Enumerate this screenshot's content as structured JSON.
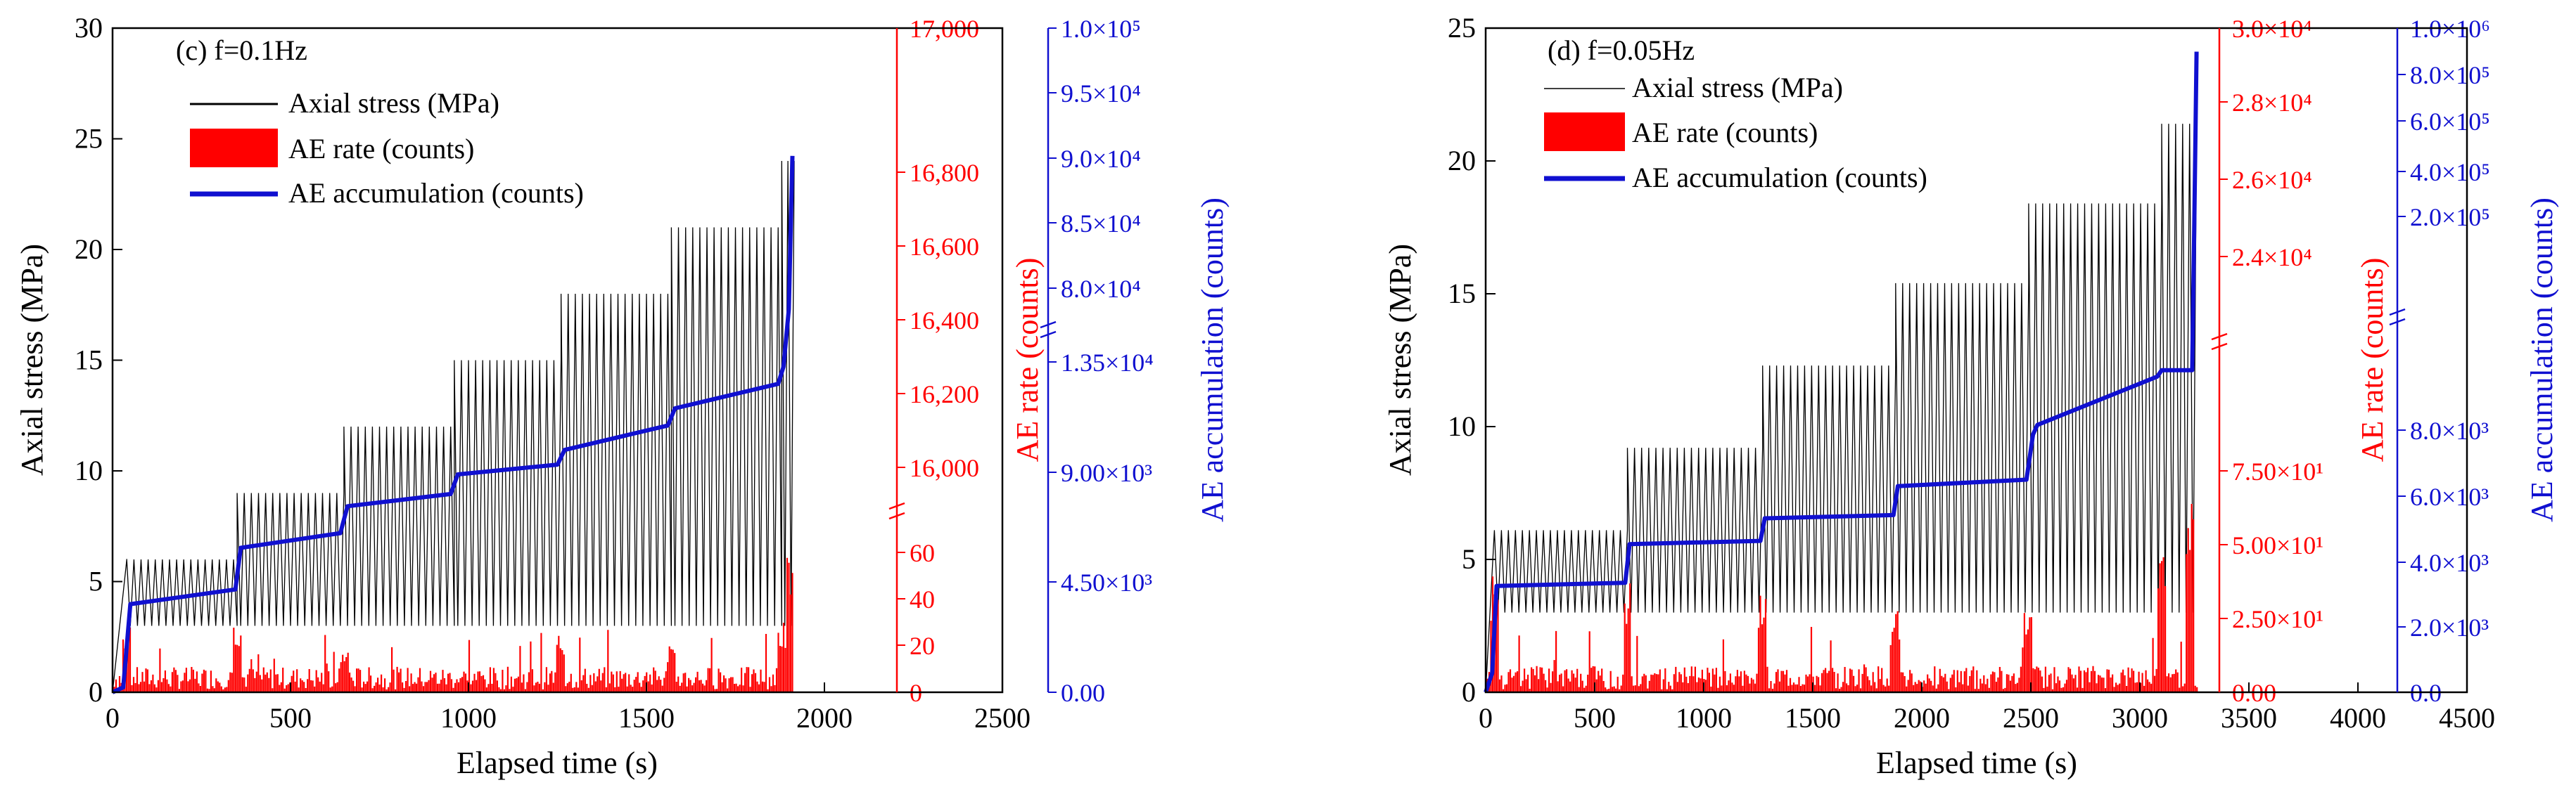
{
  "colors": {
    "stress": "#000000",
    "rate": "#ff0000",
    "acc": "#1010d0",
    "axis": "#000000"
  },
  "chart_data": [
    {
      "type": "line",
      "panel_label": "(c) f=0.1Hz",
      "xlabel": "Elapsed time (s)",
      "xlim": [
        0,
        2500
      ],
      "xticks": [
        0,
        500,
        1000,
        1500,
        2000,
        2500
      ],
      "xticklabels": [
        "0",
        "500",
        "1000",
        "1500",
        "2000",
        "2500"
      ],
      "left_axis": {
        "label": "Axial stress (MPa)",
        "ylim": [
          0,
          30
        ],
        "ticks": [
          0,
          5,
          10,
          15,
          20,
          25,
          30
        ],
        "ticklabels": [
          "0",
          "5",
          "10",
          "15",
          "20",
          "25",
          "30"
        ]
      },
      "rate_axis": {
        "label": "AE rate (counts)",
        "lower_ticks": [
          "0",
          "20",
          "40",
          "60"
        ],
        "upper_ticks": [
          "16,000",
          "16,200",
          "16,400",
          "16,600",
          "16,800",
          "17,000"
        ]
      },
      "acc_axis": {
        "label": "AE accumulation (counts)",
        "lower_ticks": [
          "0.00",
          "4.50×10³",
          "9.00×10³",
          "1.35×10⁴"
        ],
        "upper_ticks": [
          "8.0×10⁴",
          "8.5×10⁴",
          "9.0×10⁴",
          "9.5×10⁴",
          "1.0×10⁵"
        ]
      },
      "legend": [
        "Axial stress (MPa)",
        "AE rate (counts)",
        "AE accumulation (counts)"
      ],
      "stress_steps": [
        {
          "t0": 40,
          "t1": 350,
          "min": 3,
          "max": 6
        },
        {
          "t0": 350,
          "t1": 650,
          "min": 3,
          "max": 9
        },
        {
          "t0": 650,
          "t1": 960,
          "min": 3,
          "max": 12
        },
        {
          "t0": 960,
          "t1": 1260,
          "min": 3,
          "max": 15
        },
        {
          "t0": 1260,
          "t1": 1570,
          "min": 3,
          "max": 18
        },
        {
          "t0": 1570,
          "t1": 1880,
          "min": 3,
          "max": 21
        },
        {
          "t0": 1880,
          "t1": 1915,
          "min": 3,
          "max": 24
        }
      ],
      "ae_rate_series": {
        "t_end": 1915,
        "base": 6,
        "spikes": [
          {
            "t": 40,
            "v": 28
          },
          {
            "t": 350,
            "v": 32
          },
          {
            "t": 650,
            "v": 18
          },
          {
            "t": 1260,
            "v": 24
          },
          {
            "t": 1570,
            "v": 20
          },
          {
            "t": 1880,
            "v": 30
          },
          {
            "t": 1905,
            "v": 60
          }
        ]
      },
      "ae_accumulation_series": [
        [
          0,
          0
        ],
        [
          30,
          200
        ],
        [
          50,
          3600
        ],
        [
          345,
          4200
        ],
        [
          360,
          5900
        ],
        [
          640,
          6500
        ],
        [
          660,
          7600
        ],
        [
          950,
          8100
        ],
        [
          970,
          8900
        ],
        [
          1250,
          9300
        ],
        [
          1270,
          9900
        ],
        [
          1560,
          10900
        ],
        [
          1580,
          11600
        ],
        [
          1870,
          12600
        ],
        [
          1885,
          13300
        ],
        [
          1900,
          78000
        ],
        [
          1910,
          90000
        ]
      ]
    },
    {
      "type": "line",
      "panel_label": "(d) f=0.05Hz",
      "xlabel": "Elapsed time (s)",
      "xlim": [
        0,
        4500
      ],
      "xticks": [
        0,
        500,
        1000,
        1500,
        2000,
        2500,
        3000,
        3500,
        4000,
        4500
      ],
      "xticklabels": [
        "0",
        "500",
        "1000",
        "1500",
        "2000",
        "2500",
        "3000",
        "3500",
        "4000",
        "4500"
      ],
      "left_axis": {
        "label": "Axial stress (MPa)",
        "ylim": [
          0,
          25
        ],
        "ticks": [
          0,
          5,
          10,
          15,
          20,
          25
        ],
        "ticklabels": [
          "0",
          "5",
          "10",
          "15",
          "20",
          "25"
        ]
      },
      "rate_axis": {
        "label": "AE rate (counts)",
        "lower_ticks": [
          "0.00",
          "2.50×10¹",
          "5.00×10¹",
          "7.50×10¹"
        ],
        "upper_ticks": [
          "2.4×10⁴",
          "2.6×10⁴",
          "2.8×10⁴",
          "3.0×10⁴"
        ]
      },
      "acc_axis": {
        "label": "AE accumulation (counts)",
        "lower_ticks": [
          "0.0",
          "2.0×10³",
          "4.0×10³",
          "6.0×10³",
          "8.0×10³"
        ],
        "upper_ticks": [
          "2.0×10⁵",
          "4.0×10⁵",
          "6.0×10⁵",
          "8.0×10⁵",
          "1.0×10⁶"
        ]
      },
      "legend": [
        "Axial stress (MPa)",
        "AE rate (counts)",
        "AE accumulation (counts)"
      ],
      "stress_steps": [
        {
          "t0": 40,
          "t1": 650,
          "min": 3,
          "max": 6.1
        },
        {
          "t0": 650,
          "t1": 1270,
          "min": 3,
          "max": 9.2
        },
        {
          "t0": 1270,
          "t1": 1880,
          "min": 3,
          "max": 12.3
        },
        {
          "t0": 1880,
          "t1": 2490,
          "min": 3,
          "max": 15.4
        },
        {
          "t0": 2490,
          "t1": 3100,
          "min": 3,
          "max": 18.4
        },
        {
          "t0": 3100,
          "t1": 3260,
          "min": 3,
          "max": 21.4
        }
      ],
      "ae_rate_series": {
        "t_end": 3270,
        "base": 5,
        "spikes": [
          {
            "t": 40,
            "v": 40
          },
          {
            "t": 650,
            "v": 38
          },
          {
            "t": 1270,
            "v": 34
          },
          {
            "t": 1880,
            "v": 30
          },
          {
            "t": 2490,
            "v": 28
          },
          {
            "t": 3100,
            "v": 50
          },
          {
            "t": 3230,
            "v": 70
          }
        ]
      },
      "ae_accumulation_series": [
        [
          0,
          0
        ],
        [
          30,
          600
        ],
        [
          50,
          3300
        ],
        [
          640,
          3400
        ],
        [
          660,
          4600
        ],
        [
          1260,
          4700
        ],
        [
          1280,
          5400
        ],
        [
          1870,
          5500
        ],
        [
          1890,
          6400
        ],
        [
          2480,
          6600
        ],
        [
          2510,
          8000
        ],
        [
          2530,
          8300
        ],
        [
          3080,
          9800
        ],
        [
          3100,
          10000
        ],
        [
          3240,
          10000
        ],
        [
          3250,
          200000
        ],
        [
          3260,
          900000
        ]
      ]
    }
  ]
}
